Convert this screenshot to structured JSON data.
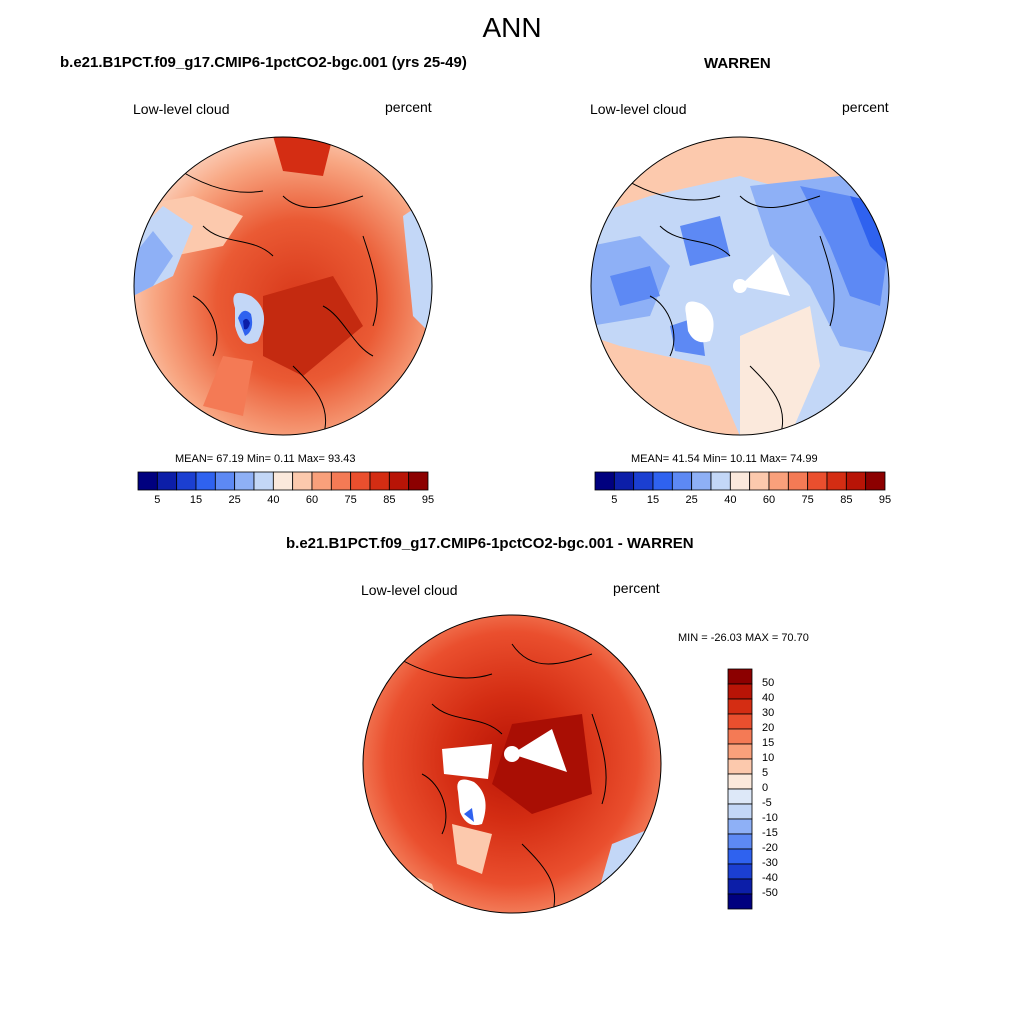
{
  "title": "ANN",
  "panels": [
    {
      "title": "b.e21.B1PCT.f09_g17.CMIP6-1pctCO2-bgc.001 (yrs 25-49)",
      "left_label": "Low-level cloud",
      "right_label": "percent",
      "stats": "MEAN=  67.19  Min=   0.11  Max=  93.43"
    },
    {
      "title": "WARREN",
      "left_label": "Low-level cloud",
      "right_label": "percent",
      "stats": "MEAN=  41.54  Min=  10.11  Max=  74.99"
    },
    {
      "title": "b.e21.B1PCT.f09_g17.CMIP6-1pctCO2-bgc.001 - WARREN",
      "left_label": "Low-level cloud",
      "right_label": "percent",
      "stats": "MIN = -26.03 MAX =  70.70"
    }
  ],
  "colorbar_abs": {
    "colors": [
      "#00007f",
      "#0c1ea8",
      "#1b3fd1",
      "#2f62ef",
      "#5d89f4",
      "#8eb0f6",
      "#c3d7f7",
      "#fbe9dc",
      "#fcc9ad",
      "#f9a07b",
      "#f47a55",
      "#ea4f2e",
      "#d42d13",
      "#b81406",
      "#8c0000"
    ],
    "tick_labels": [
      "5",
      "15",
      "25",
      "40",
      "60",
      "75",
      "85",
      "95"
    ]
  },
  "colorbar_diff": {
    "colors": [
      "#00007f",
      "#0c1ea8",
      "#1b3fd1",
      "#2f62ef",
      "#5d89f4",
      "#8eb0f6",
      "#c3d7f7",
      "#dde8f8",
      "#fbe9dc",
      "#fcc9ad",
      "#f9a07b",
      "#f47a55",
      "#ea4f2e",
      "#d42d13",
      "#b81406",
      "#8c0000"
    ],
    "tick_labels": [
      "50",
      "40",
      "30",
      "20",
      "15",
      "10",
      "5",
      "0",
      "-5",
      "-10",
      "-15",
      "-20",
      "-30",
      "-40",
      "-50"
    ]
  }
}
